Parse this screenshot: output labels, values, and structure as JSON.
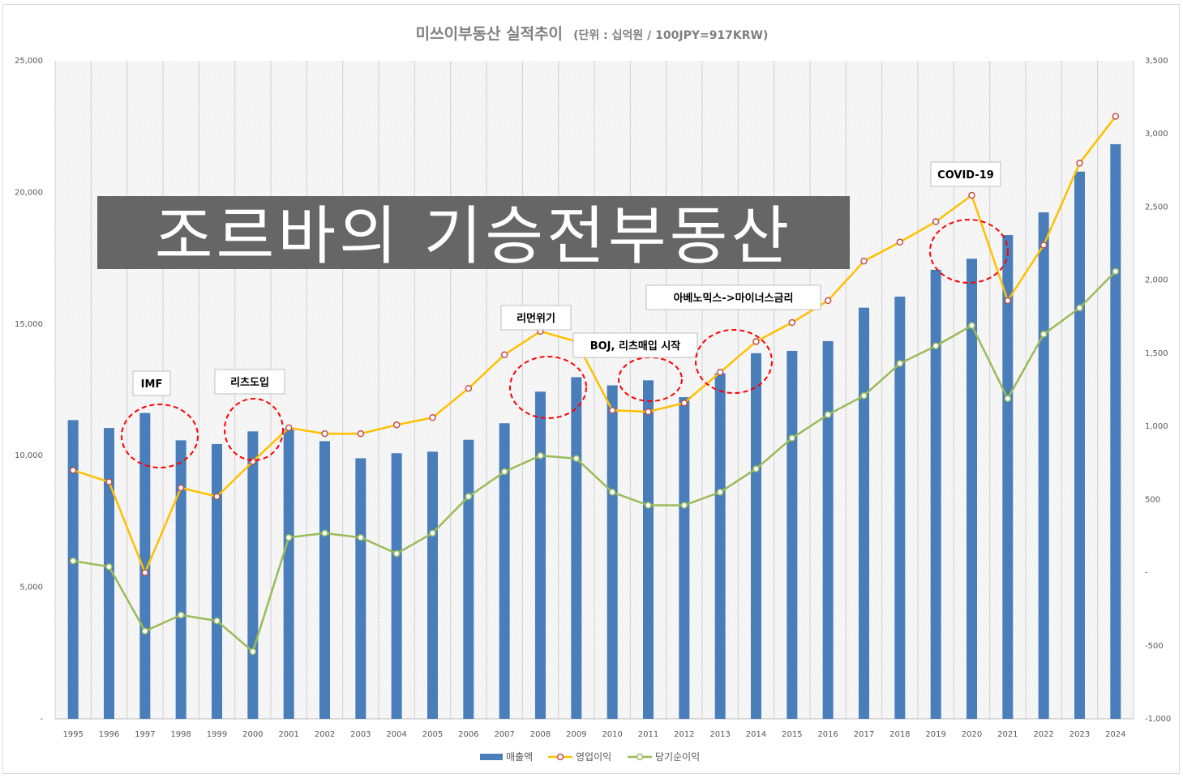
{
  "chart_data": {
    "type": "bar",
    "title": "미쓰이부동산 실적추이",
    "subtitle": "(단위 : 십억원 / 100JPY=917KRW)",
    "categories": [
      "1995",
      "1996",
      "1997",
      "1998",
      "1999",
      "2000",
      "2001",
      "2002",
      "2003",
      "2004",
      "2005",
      "2006",
      "2007",
      "2008",
      "2009",
      "2010",
      "2011",
      "2012",
      "2013",
      "2014",
      "2015",
      "2016",
      "2017",
      "2018",
      "2019",
      "2020",
      "2021",
      "2022",
      "2023",
      "2024"
    ],
    "series": [
      {
        "name": "매출액",
        "type": "bar",
        "axis": "left",
        "color": "#4a7ebb",
        "values": [
          11350,
          11050,
          11620,
          10580,
          10440,
          10920,
          11000,
          10550,
          9900,
          10090,
          10150,
          10600,
          11230,
          12430,
          12980,
          12670,
          12860,
          12220,
          13130,
          13890,
          13980,
          14350,
          15620,
          16040,
          17060,
          17480,
          18380,
          19240,
          20790,
          21830
        ]
      },
      {
        "name": "영업이익",
        "type": "line",
        "axis": "right",
        "color": "#ffc000",
        "marker": "#c0504d",
        "values": [
          700,
          620,
          0,
          580,
          520,
          760,
          990,
          950,
          950,
          1010,
          1060,
          1260,
          1490,
          1650,
          1580,
          1110,
          1100,
          1160,
          1370,
          1580,
          1710,
          1860,
          2130,
          2260,
          2400,
          2580,
          1860,
          2240,
          2800,
          3120
        ]
      },
      {
        "name": "당기순이익",
        "type": "line",
        "axis": "right",
        "color": "#9bbb59",
        "marker": "#9bbb59",
        "values": [
          80,
          40,
          -400,
          -290,
          -330,
          -540,
          240,
          270,
          240,
          130,
          270,
          520,
          690,
          800,
          780,
          550,
          460,
          460,
          550,
          710,
          920,
          1080,
          1210,
          1430,
          1550,
          1690,
          1190,
          1630,
          1810,
          2060
        ]
      }
    ],
    "left_axis": {
      "min": 0,
      "max": 25000,
      "ticks": [
        "-",
        "5,000",
        "10,000",
        "15,000",
        "20,000",
        "25,000"
      ]
    },
    "right_axis": {
      "min": -1000,
      "max": 3500,
      "ticks": [
        "-1,000",
        "-500",
        "-",
        "500",
        "1,000",
        "1,500",
        "2,000",
        "2,500",
        "3,000",
        "3,500"
      ]
    },
    "grid": "vertical",
    "legend_position": "bottom",
    "annotations": [
      {
        "text": "IMF",
        "year": "1997"
      },
      {
        "text": "리츠도입",
        "year": "2000"
      },
      {
        "text": "리먼위기",
        "year": "2008"
      },
      {
        "text": "BOJ, 리츠매입 시작",
        "year": "2011"
      },
      {
        "text": "아베노믹스->마이너스금리",
        "year": "2013"
      },
      {
        "text": "COVID-19",
        "year": "2020"
      }
    ],
    "watermark": "조르바의 기승전부동산"
  }
}
